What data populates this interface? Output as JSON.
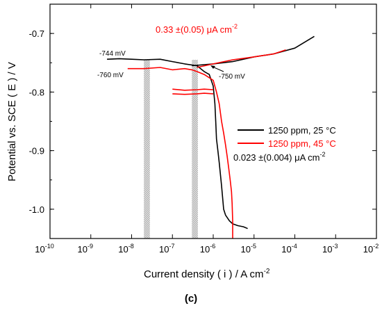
{
  "chart_data": {
    "type": "line",
    "xlabel": "Current density ( i ) / A cm",
    "xlabel_sup": "-2",
    "ylabel": "Potential vs. SCE ( E ) / V",
    "caption": "(c)",
    "x_scale": "log",
    "xlim": [
      1e-10,
      0.01
    ],
    "ylim": [
      -1.05,
      -0.65
    ],
    "x_tick_exponents": [
      -10,
      -9,
      -8,
      -7,
      -6,
      -5,
      -4,
      -3,
      -2
    ],
    "x_tick_base": "10",
    "y_ticks": [
      "-0.7",
      "-0.8",
      "-0.9",
      "-1.0"
    ],
    "grid": false,
    "legend_position": "right",
    "legend": [
      "1250 ppm, 25 °C",
      "1250 ppm, 45 °C"
    ],
    "colors": {
      "series1": "#000000",
      "series2": "#ff0000",
      "band": "#bdbdbd"
    },
    "annotations": {
      "a744": "-744 mV",
      "a760": "-760 mV",
      "a750": "-750 mV",
      "icorr45": {
        "main": "0.33 ±(0.05) μA cm",
        "sup": "-2"
      },
      "icorr25": {
        "main": "0.023 ±(0.004) μA cm",
        "sup": "-2"
      }
    },
    "bands_x": [
      [
        2e-08,
        2.8e-08
      ],
      [
        3e-07,
        4.2e-07
      ]
    ],
    "series": [
      {
        "name": "1250 ppm, 25 °C",
        "color": "#000000",
        "x": [
          2.5e-09,
          5e-09,
          1e-08,
          2e-08,
          5e-08,
          1e-07,
          2e-07,
          4e-07,
          6e-07,
          8e-07,
          1e-06,
          1.1e-06,
          1.15e-06,
          1.2e-06,
          1.3e-06,
          1.4e-06,
          1.5e-06,
          1.6e-06,
          1.7e-06,
          1.8e-06,
          2e-06,
          2.5e-06,
          3e-06,
          4e-06,
          5.5e-06,
          7e-06
        ],
        "y": [
          -0.744,
          -0.743,
          -0.744,
          -0.745,
          -0.744,
          -0.748,
          -0.752,
          -0.755,
          -0.765,
          -0.77,
          -0.79,
          -0.82,
          -0.85,
          -0.88,
          -0.9,
          -0.92,
          -0.94,
          -0.96,
          -0.98,
          -1.0,
          -1.01,
          -1.02,
          -1.025,
          -1.028,
          -1.03,
          -1.033
        ]
      },
      {
        "name": "1250 ppm, 25 °C",
        "color": "#000000",
        "x": [
          3e-07,
          1e-06,
          3e-06,
          1e-05,
          3e-05,
          0.0001,
          0.0003
        ],
        "y": [
          -0.755,
          -0.752,
          -0.748,
          -0.74,
          -0.735,
          -0.725,
          -0.705
        ]
      },
      {
        "name": "1250 ppm, 45 °C",
        "color": "#ff0000",
        "x": [
          8e-09,
          2e-08,
          5e-08,
          1e-07,
          2e-07,
          3e-07,
          4e-07,
          6e-07,
          1e-06,
          1.2e-06,
          1.4e-06,
          1.6e-06,
          1.8e-06,
          2e-06,
          2.2e-06,
          2.4e-06,
          2.6e-06,
          2.8e-06,
          2.9e-06,
          3e-06,
          3e-06
        ],
        "y": [
          -0.76,
          -0.76,
          -0.758,
          -0.762,
          -0.76,
          -0.762,
          -0.765,
          -0.77,
          -0.78,
          -0.8,
          -0.82,
          -0.85,
          -0.87,
          -0.89,
          -0.91,
          -0.93,
          -0.95,
          -0.97,
          -0.99,
          -1.02,
          -1.05
        ]
      },
      {
        "name": "1250 ppm, 45 °C",
        "color": "#ff0000",
        "x": [
          4e-07,
          1e-06,
          3e-06,
          1e-05,
          3e-05,
          6e-05
        ],
        "y": [
          -0.758,
          -0.752,
          -0.745,
          -0.74,
          -0.735,
          -0.728
        ]
      },
      {
        "name": "1250 ppm, 45 °C",
        "color": "#ff0000",
        "x": [
          1e-07,
          2e-07,
          4e-07,
          6e-07,
          1e-06
        ],
        "y": [
          -0.795,
          -0.797,
          -0.796,
          -0.795,
          -0.796
        ]
      },
      {
        "name": "1250 ppm, 45 °C",
        "color": "#ff0000",
        "x": [
          1e-07,
          2e-07,
          4e-07,
          6e-07,
          1e-06
        ],
        "y": [
          -0.803,
          -0.804,
          -0.803,
          -0.802,
          -0.803
        ]
      }
    ]
  }
}
